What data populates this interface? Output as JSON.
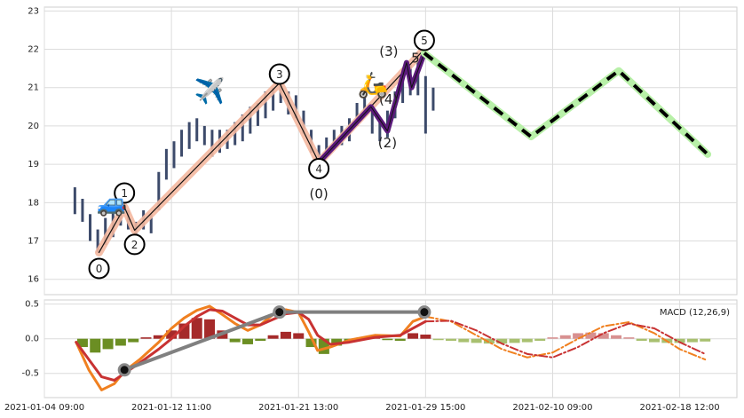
{
  "chart_data": [
    {
      "type": "elliott-price",
      "xlim": [
        0,
        545
      ],
      "ylim": [
        15.6,
        23.1
      ],
      "xticks": [
        {
          "value": 0,
          "label": "2021-01-04 09:00"
        },
        {
          "value": 100,
          "label": "2021-01-12 11:00"
        },
        {
          "value": 200,
          "label": "2021-01-21 13:00"
        },
        {
          "value": 300,
          "label": "2021-01-29 15:00"
        },
        {
          "value": 400,
          "label": "2021-02-10 09:00"
        },
        {
          "value": 500,
          "label": "2021-02-18 12:00"
        }
      ],
      "yticks": [
        16,
        17,
        18,
        19,
        20,
        21,
        22,
        23
      ],
      "grid": true,
      "price": {
        "color": "#3c4a6a",
        "x": [
          24,
          30,
          36,
          42,
          48,
          54,
          60,
          66,
          72,
          78,
          84,
          90,
          96,
          102,
          108,
          114,
          120,
          126,
          132,
          138,
          144,
          150,
          156,
          162,
          168,
          174,
          180,
          186,
          192,
          198,
          204,
          210,
          216,
          222,
          228,
          234,
          240,
          246,
          252,
          258,
          264,
          270,
          276,
          282,
          288,
          294,
          300,
          306
        ],
        "low": [
          17.7,
          17.5,
          17.0,
          16.7,
          16.9,
          17.1,
          17.4,
          17.3,
          17.1,
          17.3,
          17.2,
          17.8,
          18.6,
          18.9,
          19.2,
          19.4,
          19.6,
          19.5,
          19.2,
          19.3,
          19.4,
          19.5,
          19.6,
          19.8,
          20.0,
          20.2,
          20.4,
          20.6,
          20.3,
          20.2,
          19.8,
          19.3,
          19.0,
          19.2,
          19.4,
          19.5,
          19.6,
          20.0,
          20.3,
          19.8,
          19.6,
          19.7,
          20.2,
          20.6,
          20.8,
          20.8,
          19.8,
          20.4
        ],
        "high": [
          18.4,
          18.1,
          17.7,
          17.3,
          17.6,
          17.8,
          17.9,
          17.8,
          17.5,
          17.8,
          17.7,
          18.8,
          19.4,
          19.6,
          19.9,
          20.1,
          20.2,
          20.0,
          19.9,
          19.9,
          19.9,
          20.1,
          20.3,
          20.5,
          20.6,
          20.9,
          21.0,
          21.1,
          20.9,
          20.8,
          20.4,
          19.9,
          19.5,
          19.7,
          19.9,
          20.0,
          20.2,
          20.6,
          21.0,
          20.5,
          20.2,
          20.4,
          20.9,
          21.5,
          21.6,
          21.9,
          21.3,
          21.0
        ]
      },
      "wave": {
        "color": "#f4b8a0",
        "x": [
          43,
          63,
          71,
          185,
          216,
          299
        ],
        "values": [
          16.7,
          17.88,
          17.28,
          21.12,
          19.05,
          22.0
        ],
        "labels": [
          "0",
          "1",
          "2",
          "3",
          "4",
          "5"
        ]
      },
      "subwave": {
        "color": "#5a1a7a",
        "x": [
          216,
          257,
          270,
          285,
          289,
          299
        ],
        "values": [
          19.05,
          20.5,
          19.87,
          21.65,
          21.0,
          21.9
        ],
        "labels": [
          "(0)",
          null,
          "(2)",
          "(3)",
          "(4)",
          "5"
        ]
      },
      "forecast": {
        "color": "#b8f0a8",
        "x": [
          299,
          383,
          452,
          522
        ],
        "values": [
          21.9,
          19.72,
          21.44,
          19.26
        ]
      },
      "icons": [
        "🚙",
        "✈️",
        "🛵"
      ]
    },
    {
      "type": "macd",
      "label": "MACD (12,26,9)",
      "xlim": [
        0,
        545
      ],
      "ylim": [
        -0.85,
        0.56
      ],
      "xticks": [
        {
          "value": 0,
          "label": "2021-01-04 09:00"
        },
        {
          "value": 100,
          "label": "2021-01-12 11:00"
        },
        {
          "value": 200,
          "label": "2021-01-21 13:00"
        },
        {
          "value": 300,
          "label": "2021-01-29 15:00"
        },
        {
          "value": 400,
          "label": "2021-02-10 09:00"
        },
        {
          "value": 500,
          "label": "2021-02-18 12:00"
        }
      ],
      "yticks": [
        -0.5,
        {
          "value": 0,
          "label": "0.0"
        },
        0.5
      ],
      "grid": true,
      "macd": {
        "color": "#f08020",
        "x": [
          25,
          35,
          45,
          55,
          63,
          75,
          90,
          100,
          110,
          120,
          130,
          140,
          150,
          160,
          170,
          180,
          190,
          200,
          208,
          215,
          225,
          240,
          260,
          280,
          290,
          300
        ],
        "values": [
          -0.05,
          -0.45,
          -0.74,
          -0.65,
          -0.47,
          -0.3,
          -0.05,
          0.15,
          0.3,
          0.41,
          0.47,
          0.35,
          0.22,
          0.12,
          0.2,
          0.35,
          0.42,
          0.38,
          0.1,
          -0.17,
          -0.12,
          -0.02,
          0.05,
          0.04,
          0.25,
          0.32
        ]
      },
      "signal": {
        "color": "#c83232",
        "x": [
          25,
          35,
          45,
          55,
          63,
          75,
          90,
          100,
          110,
          120,
          130,
          140,
          150,
          160,
          170,
          180,
          190,
          200,
          208,
          215,
          225,
          240,
          260,
          280,
          290,
          300
        ],
        "values": [
          -0.05,
          -0.3,
          -0.55,
          -0.6,
          -0.5,
          -0.35,
          -0.15,
          0.0,
          0.18,
          0.32,
          0.42,
          0.4,
          0.3,
          0.2,
          0.2,
          0.28,
          0.36,
          0.38,
          0.28,
          0.05,
          -0.08,
          -0.05,
          0.02,
          0.05,
          0.15,
          0.25
        ]
      },
      "macd_forecast": {
        "color": "#f08020",
        "x": [
          300,
          320,
          340,
          360,
          380,
          400,
          420,
          440,
          460,
          480,
          500,
          520
        ],
        "values": [
          0.32,
          0.25,
          0.05,
          -0.15,
          -0.27,
          -0.2,
          0.0,
          0.18,
          0.24,
          0.08,
          -0.15,
          -0.3
        ]
      },
      "signal_forecast": {
        "color": "#c83232",
        "x": [
          300,
          320,
          340,
          360,
          380,
          400,
          420,
          440,
          460,
          480,
          500,
          520
        ],
        "values": [
          0.25,
          0.26,
          0.12,
          -0.07,
          -0.22,
          -0.27,
          -0.12,
          0.08,
          0.22,
          0.15,
          -0.05,
          -0.22
        ]
      },
      "histogram": {
        "pos_color": "#a52a2a",
        "neg_color": "#6b8e23",
        "x": [
          30,
          40,
          50,
          60,
          70,
          80,
          90,
          100,
          110,
          120,
          130,
          140,
          150,
          160,
          170,
          180,
          190,
          200,
          210,
          220,
          230,
          240,
          250,
          260,
          270,
          280,
          290,
          300
        ],
        "values": [
          -0.12,
          -0.2,
          -0.15,
          -0.1,
          -0.05,
          0.02,
          0.05,
          0.12,
          0.22,
          0.3,
          0.28,
          0.12,
          -0.05,
          -0.08,
          -0.03,
          0.05,
          0.1,
          0.08,
          -0.12,
          -0.22,
          -0.1,
          -0.05,
          0.02,
          0.03,
          -0.02,
          -0.03,
          0.08,
          0.06
        ]
      },
      "histogram_forecast": {
        "pos_color": "#d89090",
        "neg_color": "#a8c070",
        "x": [
          310,
          320,
          330,
          340,
          350,
          360,
          370,
          380,
          390,
          400,
          410,
          420,
          430,
          440,
          450,
          460,
          470,
          480,
          490,
          500,
          510,
          520
        ],
        "values": [
          -0.02,
          -0.03,
          -0.05,
          -0.06,
          -0.07,
          -0.07,
          -0.06,
          -0.05,
          -0.03,
          0.02,
          0.05,
          0.08,
          0.09,
          0.08,
          0.05,
          0.02,
          -0.03,
          -0.05,
          -0.06,
          -0.06,
          -0.05,
          -0.04
        ]
      },
      "divergence": {
        "color": "#808080",
        "x": [
          63,
          185,
          299
        ],
        "values": [
          -0.45,
          0.385,
          0.385
        ]
      }
    }
  ]
}
